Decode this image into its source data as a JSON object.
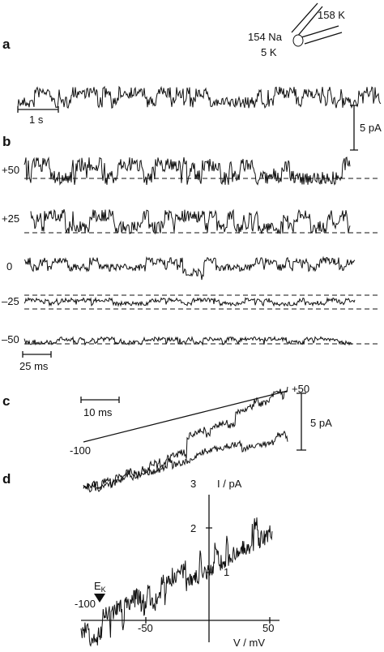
{
  "panels": {
    "a": {
      "label": "a",
      "pipette": {
        "pipette_solution": "158 K",
        "bath_na": "154 Na",
        "bath_k": "5 K"
      },
      "time_bar": "1 s",
      "current_bar": "5 pA"
    },
    "b": {
      "label": "b",
      "voltages": [
        "+50",
        "+25",
        "0",
        "–25",
        "–50"
      ],
      "time_bar": "25 ms"
    },
    "c": {
      "label": "c",
      "time_bar": "10 ms",
      "ramp_end": "+50",
      "ramp_start": "-100",
      "current_bar": "5 pA"
    },
    "d": {
      "label": "d",
      "y_axis_label": "I / pA",
      "x_axis_label": "V / mV",
      "y_ticks": [
        "3",
        "2",
        "1"
      ],
      "x_ticks": [
        "-100",
        "-50",
        "50"
      ],
      "reversal": {
        "main": "E",
        "sub": "K"
      }
    }
  }
}
